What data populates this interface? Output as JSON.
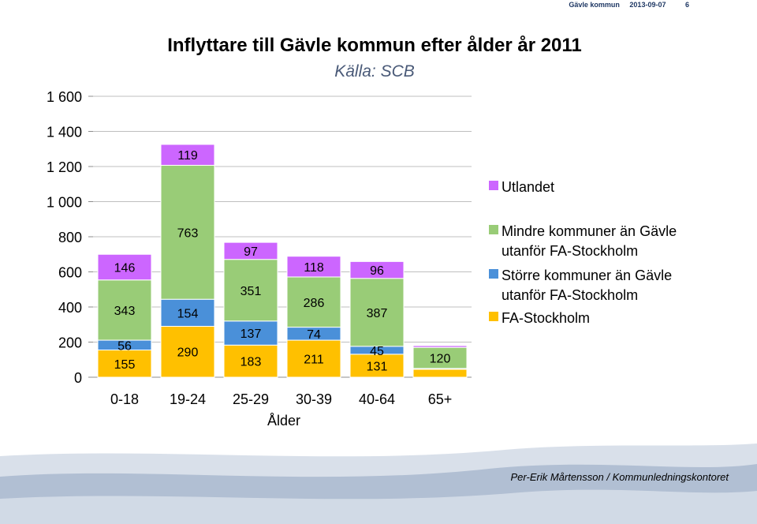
{
  "header": {
    "organization": "Gävle kommun",
    "date": "2013-09-07",
    "page": "6"
  },
  "footer": {
    "credit": "Per-Erik Mårtensson / Kommunledningskontoret"
  },
  "colors": {
    "utlandet": "#cc66ff",
    "mindre": "#99cc77",
    "storre": "#4a90d9",
    "fa_stockholm": "#ffc000",
    "footer_light": "#d5dde8",
    "footer_mid": "#a9b9cf"
  },
  "chart_data": {
    "type": "bar",
    "stacked": true,
    "title": "Inflyttare till Gävle kommun efter ålder år 2011",
    "subtitle": "Källa: SCB",
    "xlabel": "Ålder",
    "ylabel": "",
    "ylim": [
      0,
      1600
    ],
    "yticks": [
      0,
      200,
      400,
      600,
      800,
      1000,
      1200,
      1400,
      1600
    ],
    "ytick_labels": [
      "0",
      "200",
      "400",
      "600",
      "800",
      "1 000",
      "1 200",
      "1 400",
      "1 600"
    ],
    "grid": true,
    "legend_position": "right",
    "categories": [
      "0-18",
      "19-24",
      "25-29",
      "30-39",
      "40-64",
      "65+"
    ],
    "series": [
      {
        "name": "FA-Stockholm",
        "color_key": "fa_stockholm",
        "values": [
          155,
          290,
          183,
          211,
          131,
          45
        ],
        "labels": [
          "155",
          "290",
          "183",
          "211",
          "131",
          ""
        ]
      },
      {
        "name": "Större kommuner än Gävle utanför FA-Stockholm",
        "color_key": "storre",
        "values": [
          56,
          154,
          137,
          74,
          45,
          5
        ],
        "labels": [
          "56",
          "154",
          "137",
          "74",
          "45",
          ""
        ]
      },
      {
        "name": "Mindre kommuner än Gävle utanför FA-Stockholm",
        "color_key": "mindre",
        "values": [
          343,
          763,
          351,
          286,
          387,
          120
        ],
        "labels": [
          "343",
          "763",
          "351",
          "286",
          "387",
          "120"
        ]
      },
      {
        "name": "Utlandet",
        "color_key": "utlandet",
        "values": [
          146,
          119,
          97,
          118,
          96,
          10
        ],
        "labels": [
          "146",
          "119",
          "97",
          "118",
          "96",
          ""
        ]
      }
    ],
    "legend": [
      {
        "color_key": "utlandet",
        "lines": [
          "Utlandet"
        ]
      },
      {
        "color_key": "mindre",
        "lines": [
          "Mindre kommuner än Gävle",
          "utanför FA-Stockholm"
        ]
      },
      {
        "color_key": "storre",
        "lines": [
          "Större kommuner än Gävle",
          "utanför FA-Stockholm"
        ]
      },
      {
        "color_key": "fa_stockholm",
        "lines": [
          "FA-Stockholm"
        ]
      }
    ]
  }
}
